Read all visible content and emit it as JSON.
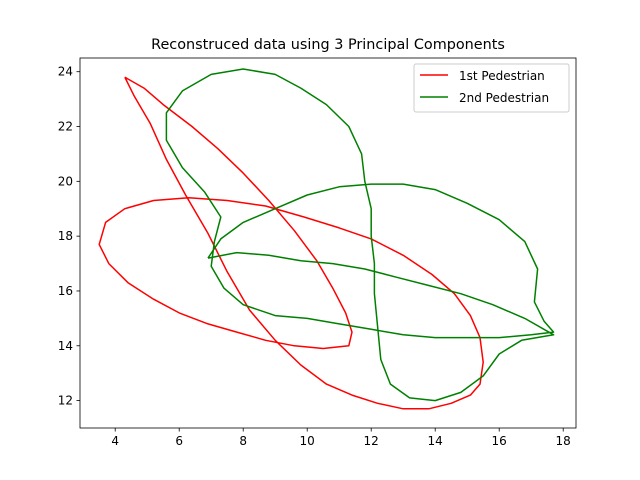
{
  "chart_data": {
    "type": "line",
    "title": "Reconstruced data using 3 Principal Components",
    "xlabel": "",
    "ylabel": "",
    "xlim": [
      2.9,
      18.4
    ],
    "ylim": [
      11.0,
      24.5
    ],
    "xticks": [
      4,
      6,
      8,
      10,
      12,
      14,
      16,
      18
    ],
    "yticks": [
      12,
      14,
      16,
      18,
      20,
      22,
      24
    ],
    "grid": false,
    "legend_position": "top-right",
    "series": [
      {
        "name": "1st Pedestrian",
        "color": "#ff0000",
        "points": [
          [
            4.3,
            23.8
          ],
          [
            4.9,
            23.4
          ],
          [
            5.5,
            22.8
          ],
          [
            6.4,
            22.0
          ],
          [
            7.2,
            21.2
          ],
          [
            8.0,
            20.3
          ],
          [
            8.8,
            19.3
          ],
          [
            9.6,
            18.2
          ],
          [
            10.3,
            17.1
          ],
          [
            10.8,
            16.1
          ],
          [
            11.2,
            15.2
          ],
          [
            11.4,
            14.5
          ],
          [
            11.3,
            14.0
          ],
          [
            10.5,
            13.9
          ],
          [
            9.6,
            14.0
          ],
          [
            8.7,
            14.2
          ],
          [
            7.8,
            14.5
          ],
          [
            6.9,
            14.8
          ],
          [
            6.0,
            15.2
          ],
          [
            5.2,
            15.7
          ],
          [
            4.4,
            16.3
          ],
          [
            3.8,
            17.0
          ],
          [
            3.5,
            17.7
          ],
          [
            3.7,
            18.5
          ],
          [
            4.3,
            19.0
          ],
          [
            5.2,
            19.3
          ],
          [
            6.3,
            19.4
          ],
          [
            7.5,
            19.3
          ],
          [
            8.7,
            19.1
          ],
          [
            9.9,
            18.7
          ],
          [
            11.0,
            18.3
          ],
          [
            12.0,
            17.9
          ],
          [
            13.0,
            17.3
          ],
          [
            13.9,
            16.6
          ],
          [
            14.6,
            15.9
          ],
          [
            15.1,
            15.1
          ],
          [
            15.4,
            14.3
          ],
          [
            15.5,
            13.4
          ],
          [
            15.4,
            12.6
          ],
          [
            15.1,
            12.2
          ],
          [
            14.5,
            11.9
          ],
          [
            13.8,
            11.7
          ],
          [
            13.0,
            11.7
          ],
          [
            12.2,
            11.9
          ],
          [
            11.4,
            12.2
          ],
          [
            10.6,
            12.6
          ],
          [
            9.8,
            13.3
          ],
          [
            9.0,
            14.2
          ],
          [
            8.2,
            15.3
          ],
          [
            7.5,
            16.7
          ],
          [
            6.9,
            18.1
          ],
          [
            6.2,
            19.5
          ],
          [
            5.6,
            20.8
          ],
          [
            5.1,
            22.1
          ],
          [
            4.6,
            23.1
          ],
          [
            4.3,
            23.8
          ]
        ]
      },
      {
        "name": "2nd Pedestrian",
        "color": "#008000",
        "points": [
          [
            6.9,
            17.2
          ],
          [
            7.3,
            17.9
          ],
          [
            8.0,
            18.5
          ],
          [
            9.0,
            19.0
          ],
          [
            10.0,
            19.5
          ],
          [
            11.0,
            19.8
          ],
          [
            12.0,
            19.9
          ],
          [
            13.0,
            19.9
          ],
          [
            14.0,
            19.7
          ],
          [
            15.0,
            19.2
          ],
          [
            16.0,
            18.6
          ],
          [
            16.8,
            17.8
          ],
          [
            17.2,
            16.8
          ],
          [
            17.1,
            15.6
          ],
          [
            17.4,
            14.9
          ],
          [
            17.7,
            14.5
          ],
          [
            17.0,
            14.4
          ],
          [
            16.0,
            14.3
          ],
          [
            15.0,
            14.3
          ],
          [
            14.0,
            14.3
          ],
          [
            13.0,
            14.4
          ],
          [
            12.0,
            14.6
          ],
          [
            11.0,
            14.8
          ],
          [
            10.0,
            15.0
          ],
          [
            9.0,
            15.1
          ],
          [
            8.0,
            15.5
          ],
          [
            7.4,
            16.1
          ],
          [
            7.0,
            16.9
          ],
          [
            7.1,
            17.8
          ],
          [
            7.3,
            18.7
          ],
          [
            6.8,
            19.6
          ],
          [
            6.1,
            20.5
          ],
          [
            5.6,
            21.5
          ],
          [
            5.6,
            22.5
          ],
          [
            6.1,
            23.3
          ],
          [
            7.0,
            23.9
          ],
          [
            8.0,
            24.1
          ],
          [
            9.0,
            23.9
          ],
          [
            9.8,
            23.4
          ],
          [
            10.6,
            22.8
          ],
          [
            11.3,
            22.0
          ],
          [
            11.7,
            21.0
          ],
          [
            11.8,
            20.0
          ],
          [
            12.0,
            19.0
          ],
          [
            12.0,
            18.0
          ],
          [
            12.1,
            17.0
          ],
          [
            12.1,
            15.9
          ],
          [
            12.2,
            14.7
          ],
          [
            12.3,
            13.5
          ],
          [
            12.6,
            12.6
          ],
          [
            13.2,
            12.1
          ],
          [
            14.0,
            12.0
          ],
          [
            14.8,
            12.3
          ],
          [
            15.5,
            12.9
          ],
          [
            16.0,
            13.7
          ],
          [
            16.7,
            14.2
          ],
          [
            17.7,
            14.4
          ],
          [
            16.8,
            15.0
          ],
          [
            15.8,
            15.5
          ],
          [
            14.8,
            15.9
          ],
          [
            13.8,
            16.2
          ],
          [
            12.8,
            16.5
          ],
          [
            11.8,
            16.8
          ],
          [
            10.8,
            17.0
          ],
          [
            9.8,
            17.1
          ],
          [
            8.8,
            17.3
          ],
          [
            7.8,
            17.4
          ],
          [
            6.9,
            17.2
          ]
        ]
      }
    ]
  }
}
